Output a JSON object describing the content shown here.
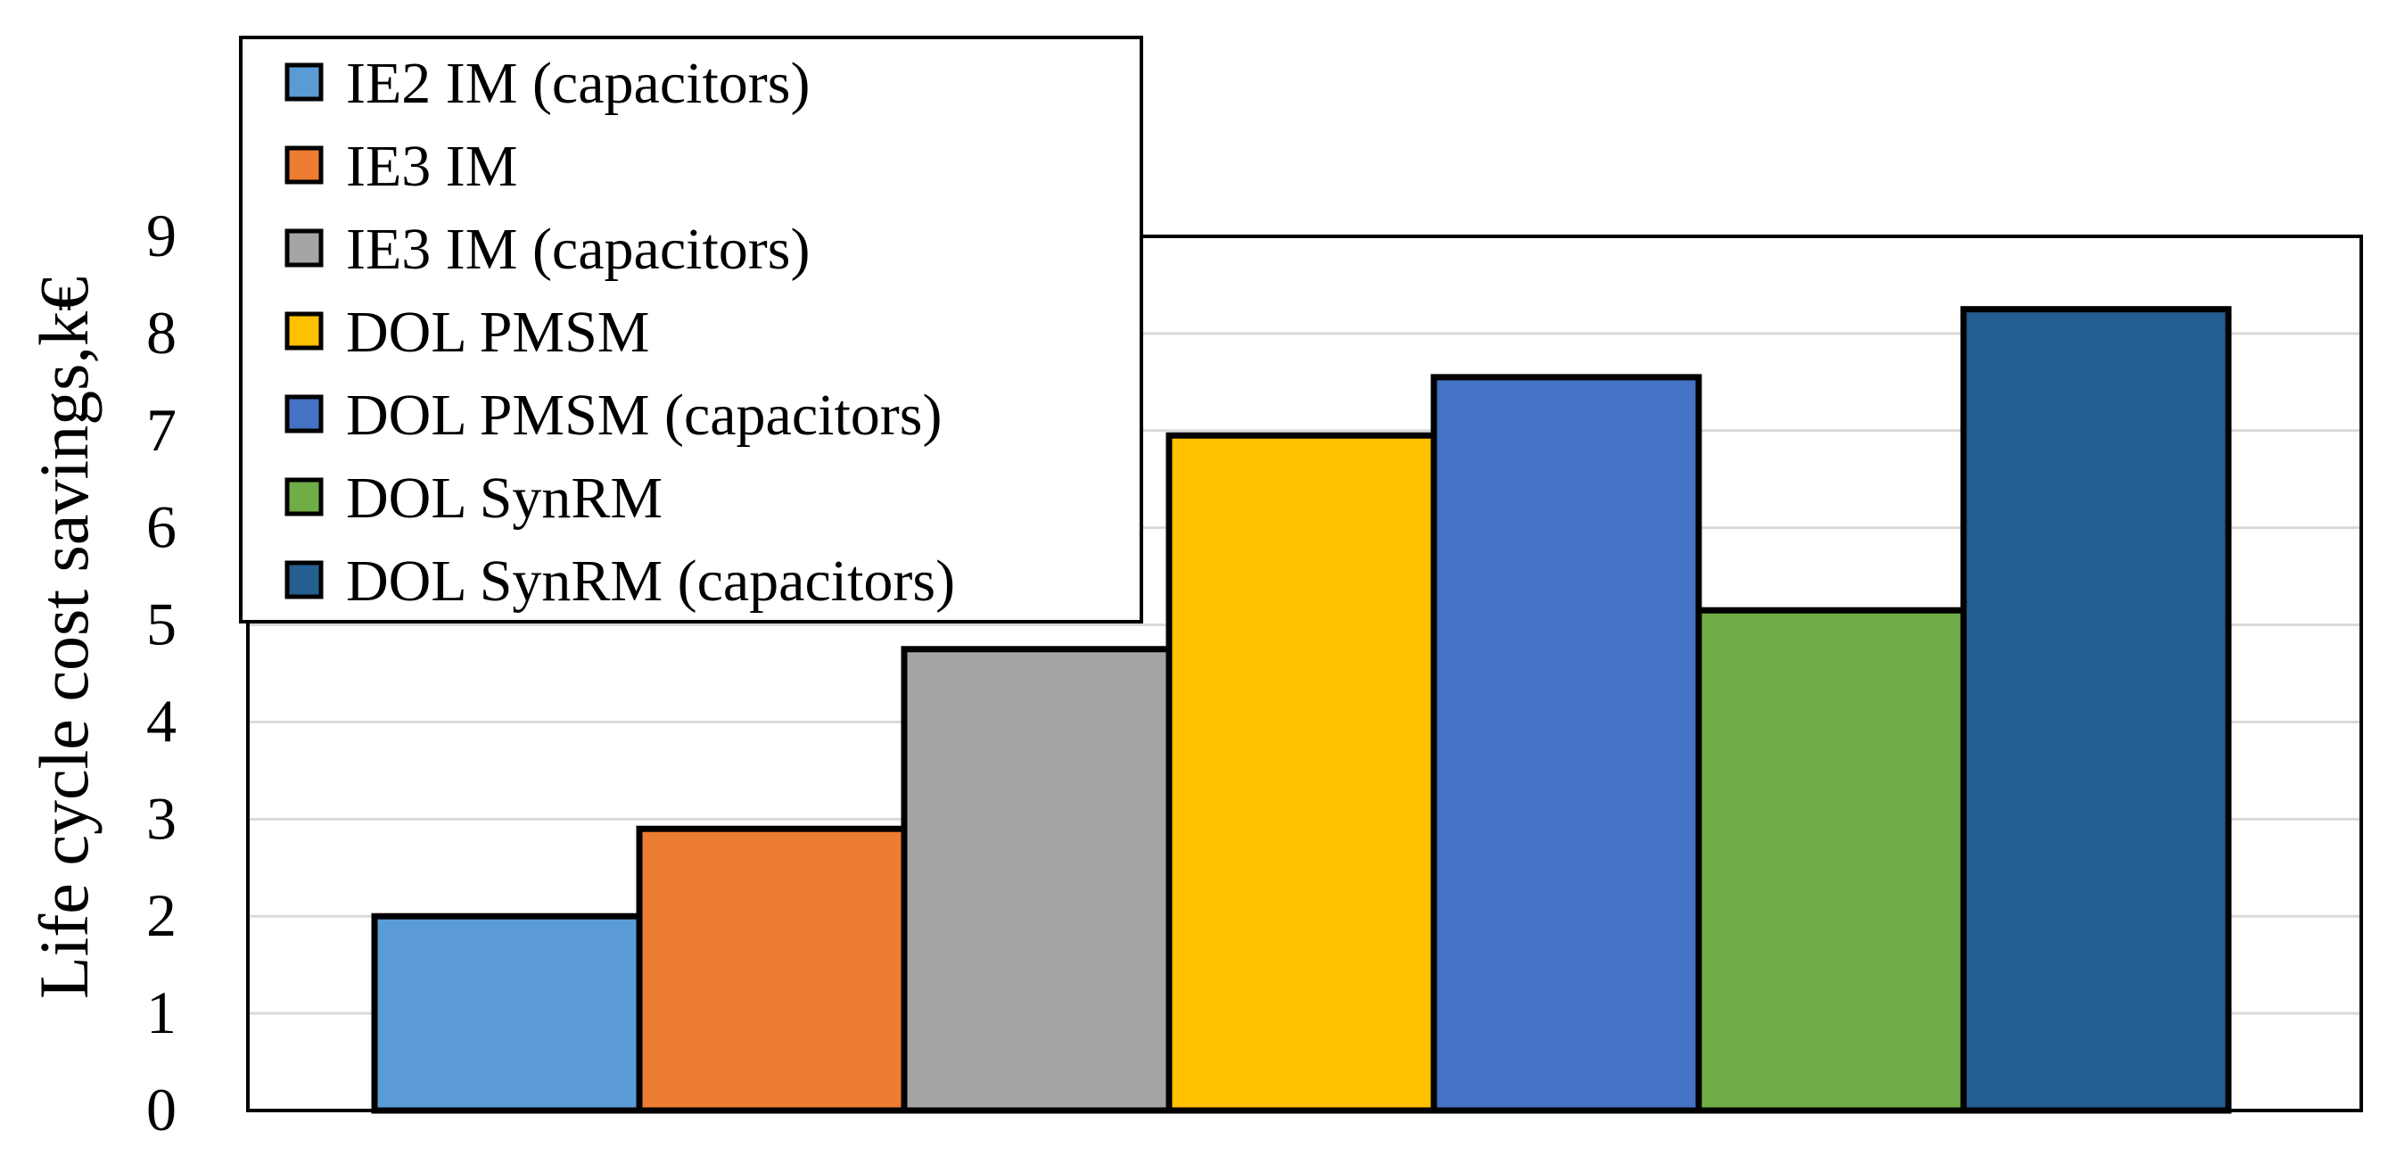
{
  "chart_data": {
    "type": "bar",
    "title": "",
    "xlabel": "",
    "ylabel": "Life cycle cost savings,k€",
    "ylim": [
      0,
      9
    ],
    "yticks": [
      0,
      1,
      2,
      3,
      4,
      5,
      6,
      7,
      8,
      9
    ],
    "grid": true,
    "legend_position": "top-left",
    "series": [
      {
        "name": "IE2 IM (capacitors)",
        "value": 2.0,
        "color": "#5B9BD5"
      },
      {
        "name": "IE3 IM",
        "value": 2.9,
        "color": "#ED7D31"
      },
      {
        "name": "IE3 IM (capacitors)",
        "value": 4.75,
        "color": "#A5A5A5"
      },
      {
        "name": "DOL PMSM",
        "value": 6.95,
        "color": "#FFC000"
      },
      {
        "name": "DOL PMSM (capacitors)",
        "value": 7.55,
        "color": "#4472C4"
      },
      {
        "name": "DOL SynRM",
        "value": 5.15,
        "color": "#70AD47"
      },
      {
        "name": "DOL SynRM (capacitors)",
        "value": 8.25,
        "color": "#255E91"
      }
    ]
  }
}
